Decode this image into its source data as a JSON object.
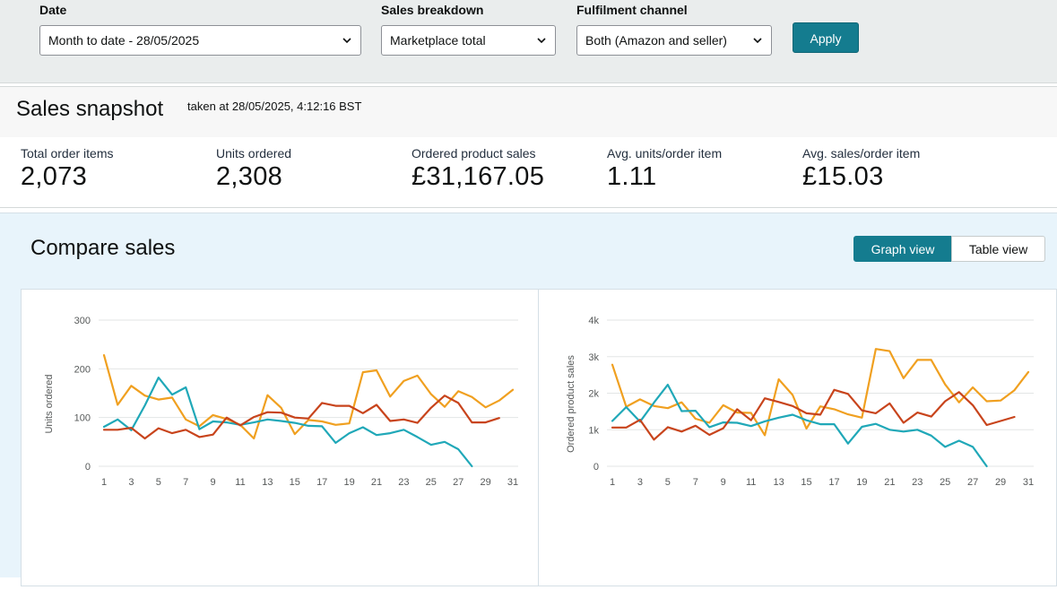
{
  "filters": {
    "date": {
      "label": "Date",
      "value": "Month to date - 28/05/2025"
    },
    "breakdown": {
      "label": "Sales breakdown",
      "value": "Marketplace total"
    },
    "channel": {
      "label": "Fulfilment channel",
      "value": "Both (Amazon and seller)"
    },
    "apply_label": "Apply"
  },
  "snapshot": {
    "title": "Sales snapshot",
    "subtitle": "taken at 28/05/2025, 4:12:16 BST",
    "metrics": [
      {
        "label": "Total order items",
        "value": "2,073"
      },
      {
        "label": "Units ordered",
        "value": "2,308"
      },
      {
        "label": "Ordered product sales",
        "value": "£31,167.05"
      },
      {
        "label": "Avg. units/order item",
        "value": "1.11"
      },
      {
        "label": "Avg. sales/order item",
        "value": "£15.03"
      }
    ]
  },
  "compare": {
    "title": "Compare sales",
    "graph_view_label": "Graph view",
    "table_view_label": "Table view"
  },
  "colors": {
    "orange": "#f0a020",
    "teal": "#20a8b8",
    "red": "#c8441c",
    "accent": "#147c8f"
  },
  "chart_data": [
    {
      "type": "line",
      "title": "",
      "xlabel": "",
      "ylabel": "Units ordered",
      "ylim": [
        0,
        300
      ],
      "yticks": [
        0,
        100,
        200,
        300
      ],
      "ytick_labels": [
        "0",
        "100",
        "200",
        "300"
      ],
      "xticks": [
        1,
        3,
        5,
        7,
        9,
        11,
        13,
        15,
        17,
        19,
        21,
        23,
        25,
        27,
        29,
        31
      ],
      "x": [
        1,
        2,
        3,
        4,
        5,
        6,
        7,
        8,
        9,
        10,
        11,
        12,
        13,
        14,
        15,
        16,
        17,
        18,
        19,
        20,
        21,
        22,
        23,
        24,
        25,
        26,
        27,
        28,
        29,
        30,
        31
      ],
      "series": [
        {
          "name": "orange",
          "color": "#f0a020",
          "values": [
            228,
            126,
            165,
            145,
            137,
            141,
            96,
            82,
            105,
            97,
            85,
            57,
            146,
            120,
            66,
            95,
            92,
            85,
            88,
            193,
            197,
            143,
            175,
            186,
            148,
            122,
            154,
            142,
            121,
            135,
            157
          ]
        },
        {
          "name": "teal",
          "color": "#20a8b8",
          "values": [
            81,
            96,
            74,
            125,
            182,
            147,
            162,
            76,
            92,
            90,
            85,
            90,
            96,
            93,
            89,
            83,
            82,
            48,
            68,
            80,
            64,
            68,
            75,
            60,
            44,
            50,
            35,
            0,
            null,
            null,
            null
          ]
        },
        {
          "name": "red",
          "color": "#c8441c",
          "values": [
            75,
            75,
            79,
            57,
            78,
            68,
            75,
            60,
            65,
            100,
            84,
            101,
            111,
            110,
            100,
            98,
            130,
            124,
            124,
            109,
            126,
            93,
            96,
            89,
            120,
            145,
            130,
            90,
            90,
            99,
            null
          ]
        }
      ]
    },
    {
      "type": "line",
      "title": "",
      "xlabel": "",
      "ylabel": "Ordered product sales",
      "ylim": [
        0,
        4000
      ],
      "yticks": [
        0,
        1000,
        2000,
        3000,
        4000
      ],
      "ytick_labels": [
        "0",
        "1k",
        "2k",
        "3k",
        "4k"
      ],
      "xticks": [
        1,
        3,
        5,
        7,
        9,
        11,
        13,
        15,
        17,
        19,
        21,
        23,
        25,
        27,
        29,
        31
      ],
      "x": [
        1,
        2,
        3,
        4,
        5,
        6,
        7,
        8,
        9,
        10,
        11,
        12,
        13,
        14,
        15,
        16,
        17,
        18,
        19,
        20,
        21,
        22,
        23,
        24,
        25,
        26,
        27,
        28,
        29,
        30,
        31
      ],
      "series": [
        {
          "name": "orange",
          "color": "#f0a020",
          "values": [
            2780,
            1630,
            1830,
            1650,
            1590,
            1750,
            1300,
            1190,
            1670,
            1470,
            1460,
            850,
            2380,
            1950,
            1030,
            1640,
            1560,
            1420,
            1330,
            3210,
            3150,
            2410,
            2910,
            2910,
            2240,
            1750,
            2160,
            1780,
            1800,
            2080,
            2580
          ]
        },
        {
          "name": "teal",
          "color": "#20a8b8",
          "values": [
            1240,
            1620,
            1220,
            1740,
            2230,
            1510,
            1520,
            1070,
            1200,
            1190,
            1100,
            1230,
            1330,
            1410,
            1260,
            1150,
            1150,
            620,
            1080,
            1160,
            1000,
            950,
            1000,
            840,
            530,
            700,
            530,
            0,
            null,
            null,
            null
          ]
        },
        {
          "name": "red",
          "color": "#c8441c",
          "values": [
            1060,
            1060,
            1270,
            730,
            1070,
            950,
            1110,
            860,
            1040,
            1560,
            1260,
            1860,
            1760,
            1650,
            1450,
            1410,
            2090,
            1980,
            1530,
            1450,
            1720,
            1190,
            1470,
            1360,
            1780,
            2030,
            1670,
            1130,
            1240,
            1350,
            null
          ]
        }
      ]
    }
  ]
}
